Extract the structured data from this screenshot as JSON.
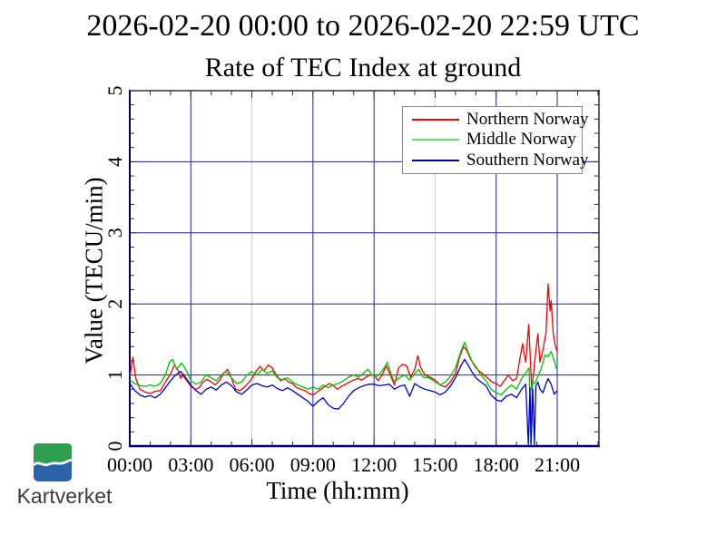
{
  "titles": {
    "line1": "2026-02-20 00:00 to 2026-02-20 22:59 UTC",
    "line2": "Rate of TEC Index at ground"
  },
  "logo": {
    "text": "Kartverket",
    "green": "#2f9e4f",
    "blue": "#2b63a8",
    "text_color": "#3c3c3c"
  },
  "chart_data": {
    "type": "line",
    "title": "Rate of TEC Index at ground",
    "subtitle": "2026-02-20 00:00 to 2026-02-20 22:59 UTC",
    "xlabel": "Time (hh:mm)",
    "ylabel": "Value (TECU/min)",
    "xlim": [
      0,
      23.05
    ],
    "ylim": [
      0,
      5
    ],
    "grid": true,
    "legend_position": "top-right",
    "xticks": [
      {
        "value": 0,
        "label": "00:00"
      },
      {
        "value": 3,
        "label": "03:00"
      },
      {
        "value": 6,
        "label": "06:00"
      },
      {
        "value": 9,
        "label": "09:00"
      },
      {
        "value": 12,
        "label": "12:00"
      },
      {
        "value": 15,
        "label": "15:00"
      },
      {
        "value": 18,
        "label": "18:00"
      },
      {
        "value": 21,
        "label": "21:00"
      }
    ],
    "yticks": [
      {
        "value": 0,
        "label": "0"
      },
      {
        "value": 1,
        "label": "1"
      },
      {
        "value": 2,
        "label": "2"
      },
      {
        "value": 3,
        "label": "3"
      },
      {
        "value": 4,
        "label": "4"
      },
      {
        "value": 5,
        "label": "5"
      }
    ],
    "x_minor_step": 1,
    "y_minor_step": 0.2,
    "light_gridlines_at": [
      6,
      15
    ],
    "colors": {
      "grid_major": "#2121a0",
      "grid_light": "#c9c9de",
      "axis_navy": "#00007f",
      "frame_dark": "#303030",
      "tick": "#303030",
      "background": "#ffffff"
    },
    "series": [
      {
        "name": "Northern Norway",
        "color": "#ff0000",
        "legend_color": "#ff0000",
        "points": [
          [
            0,
            0.97
          ],
          [
            0.15,
            1.25
          ],
          [
            0.3,
            0.95
          ],
          [
            0.5,
            0.8
          ],
          [
            0.75,
            0.76
          ],
          [
            1,
            0.74
          ],
          [
            1.25,
            0.77
          ],
          [
            1.5,
            0.78
          ],
          [
            1.75,
            0.9
          ],
          [
            2,
            1.02
          ],
          [
            2.2,
            1.14
          ],
          [
            2.4,
            1.05
          ],
          [
            2.5,
            0.95
          ],
          [
            2.6,
            1.0
          ],
          [
            2.8,
            0.92
          ],
          [
            3,
            0.84
          ],
          [
            3.2,
            0.8
          ],
          [
            3.4,
            0.82
          ],
          [
            3.6,
            0.9
          ],
          [
            3.8,
            0.94
          ],
          [
            4,
            0.9
          ],
          [
            4.2,
            0.86
          ],
          [
            4.4,
            0.92
          ],
          [
            4.6,
            1.02
          ],
          [
            4.8,
            1.08
          ],
          [
            5,
            0.95
          ],
          [
            5.2,
            0.8
          ],
          [
            5.4,
            0.78
          ],
          [
            5.6,
            0.82
          ],
          [
            5.8,
            0.88
          ],
          [
            6,
            0.95
          ],
          [
            6.2,
            1.05
          ],
          [
            6.4,
            1.12
          ],
          [
            6.6,
            1.06
          ],
          [
            6.8,
            1.14
          ],
          [
            7,
            1.1
          ],
          [
            7.2,
            1.0
          ],
          [
            7.4,
            0.92
          ],
          [
            7.6,
            0.95
          ],
          [
            7.8,
            0.9
          ],
          [
            8,
            0.88
          ],
          [
            8.2,
            0.82
          ],
          [
            8.4,
            0.8
          ],
          [
            8.6,
            0.78
          ],
          [
            8.8,
            0.74
          ],
          [
            9,
            0.72
          ],
          [
            9.2,
            0.76
          ],
          [
            9.4,
            0.8
          ],
          [
            9.6,
            0.84
          ],
          [
            9.8,
            0.88
          ],
          [
            10,
            0.85
          ],
          [
            10.2,
            0.8
          ],
          [
            10.4,
            0.84
          ],
          [
            10.6,
            0.87
          ],
          [
            10.8,
            0.9
          ],
          [
            11,
            0.93
          ],
          [
            11.2,
            0.95
          ],
          [
            11.4,
            0.93
          ],
          [
            11.6,
            0.97
          ],
          [
            11.8,
            1.0
          ],
          [
            12,
            1.0
          ],
          [
            12.2,
            0.92
          ],
          [
            12.4,
            1.0
          ],
          [
            12.6,
            1.13
          ],
          [
            12.8,
            1.0
          ],
          [
            13,
            0.86
          ],
          [
            13.2,
            1.1
          ],
          [
            13.4,
            1.15
          ],
          [
            13.6,
            1.13
          ],
          [
            13.8,
            0.97
          ],
          [
            14,
            1.08
          ],
          [
            14.15,
            1.27
          ],
          [
            14.3,
            1.1
          ],
          [
            14.5,
            1.0
          ],
          [
            14.75,
            0.97
          ],
          [
            15,
            0.93
          ],
          [
            15.25,
            0.86
          ],
          [
            15.5,
            0.83
          ],
          [
            15.75,
            0.9
          ],
          [
            16,
            1.02
          ],
          [
            16.2,
            1.25
          ],
          [
            16.4,
            1.4
          ],
          [
            16.55,
            1.35
          ],
          [
            16.75,
            1.22
          ],
          [
            17,
            1.1
          ],
          [
            17.2,
            1.05
          ],
          [
            17.4,
            1.0
          ],
          [
            17.6,
            0.95
          ],
          [
            17.8,
            0.9
          ],
          [
            18,
            0.88
          ],
          [
            18.2,
            0.84
          ],
          [
            18.4,
            0.92
          ],
          [
            18.6,
            1.0
          ],
          [
            18.8,
            0.92
          ],
          [
            19,
            0.95
          ],
          [
            19.15,
            1.2
          ],
          [
            19.3,
            1.44
          ],
          [
            19.45,
            1.18
          ],
          [
            19.6,
            1.71
          ],
          [
            19.75,
            0.78
          ],
          [
            19.9,
            1.2
          ],
          [
            20.05,
            1.58
          ],
          [
            20.15,
            1.18
          ],
          [
            20.3,
            1.35
          ],
          [
            20.45,
            1.6
          ],
          [
            20.55,
            2.28
          ],
          [
            20.65,
            1.9
          ],
          [
            20.7,
            2.05
          ],
          [
            20.8,
            1.6
          ],
          [
            20.9,
            1.42
          ],
          [
            21,
            1.32
          ]
        ]
      },
      {
        "name": "Middle Norway",
        "color": "#00c400",
        "legend_color": "#63e063",
        "points": [
          [
            0,
            0.93
          ],
          [
            0.25,
            0.88
          ],
          [
            0.5,
            0.85
          ],
          [
            0.75,
            0.84
          ],
          [
            1,
            0.86
          ],
          [
            1.25,
            0.84
          ],
          [
            1.5,
            0.88
          ],
          [
            1.75,
            1.0
          ],
          [
            1.95,
            1.18
          ],
          [
            2.1,
            1.22
          ],
          [
            2.3,
            1.08
          ],
          [
            2.55,
            1.17
          ],
          [
            2.8,
            1.05
          ],
          [
            3,
            0.92
          ],
          [
            3.25,
            0.87
          ],
          [
            3.5,
            0.9
          ],
          [
            3.75,
            1.0
          ],
          [
            4,
            0.96
          ],
          [
            4.25,
            0.92
          ],
          [
            4.5,
            1.0
          ],
          [
            4.7,
            1.05
          ],
          [
            5,
            0.96
          ],
          [
            5.25,
            0.88
          ],
          [
            5.5,
            0.9
          ],
          [
            5.75,
            1.0
          ],
          [
            6,
            1.05
          ],
          [
            6.25,
            1.0
          ],
          [
            6.5,
            1.08
          ],
          [
            6.75,
            1.02
          ],
          [
            7,
            1.06
          ],
          [
            7.25,
            0.96
          ],
          [
            7.5,
            0.93
          ],
          [
            7.75,
            0.96
          ],
          [
            8,
            0.9
          ],
          [
            8.25,
            0.86
          ],
          [
            8.5,
            0.83
          ],
          [
            8.75,
            0.8
          ],
          [
            9,
            0.83
          ],
          [
            9.25,
            0.8
          ],
          [
            9.5,
            0.86
          ],
          [
            9.75,
            0.82
          ],
          [
            10,
            0.86
          ],
          [
            10.25,
            0.88
          ],
          [
            10.5,
            0.92
          ],
          [
            10.75,
            0.97
          ],
          [
            11,
            1.0
          ],
          [
            11.25,
            0.97
          ],
          [
            11.5,
            1.03
          ],
          [
            11.7,
            1.08
          ],
          [
            11.9,
            1.0
          ],
          [
            12.1,
            0.97
          ],
          [
            12.3,
            1.02
          ],
          [
            12.5,
            1.1
          ],
          [
            12.65,
            1.18
          ],
          [
            12.85,
            1.0
          ],
          [
            13,
            0.9
          ],
          [
            13.25,
            0.96
          ],
          [
            13.5,
            1.0
          ],
          [
            13.75,
            0.93
          ],
          [
            14,
            1.02
          ],
          [
            14.2,
            1.08
          ],
          [
            14.4,
            0.97
          ],
          [
            14.7,
            0.96
          ],
          [
            15,
            0.9
          ],
          [
            15.25,
            0.86
          ],
          [
            15.5,
            0.9
          ],
          [
            15.75,
            0.98
          ],
          [
            16,
            1.1
          ],
          [
            16.25,
            1.32
          ],
          [
            16.45,
            1.46
          ],
          [
            16.6,
            1.34
          ],
          [
            16.8,
            1.2
          ],
          [
            17,
            1.12
          ],
          [
            17.25,
            1.0
          ],
          [
            17.5,
            0.92
          ],
          [
            17.75,
            0.8
          ],
          [
            18,
            0.75
          ],
          [
            18.25,
            0.72
          ],
          [
            18.5,
            0.8
          ],
          [
            18.75,
            0.86
          ],
          [
            19,
            0.8
          ],
          [
            19.25,
            0.95
          ],
          [
            19.5,
            1.05
          ],
          [
            19.62,
            1.1
          ],
          [
            19.7,
            0.02
          ],
          [
            19.78,
            0.9
          ],
          [
            19.9,
            0.88
          ],
          [
            20,
            0.95
          ],
          [
            20.2,
            1.08
          ],
          [
            20.4,
            1.28
          ],
          [
            20.55,
            1.26
          ],
          [
            20.7,
            1.33
          ],
          [
            20.85,
            1.2
          ],
          [
            21,
            1.06
          ]
        ]
      },
      {
        "name": "Southern Norway",
        "color": "#0000cc",
        "legend_color": "#0000a8",
        "points": [
          [
            0,
            0.88
          ],
          [
            0.25,
            0.78
          ],
          [
            0.5,
            0.72
          ],
          [
            0.75,
            0.69
          ],
          [
            1,
            0.71
          ],
          [
            1.25,
            0.68
          ],
          [
            1.5,
            0.73
          ],
          [
            1.75,
            0.82
          ],
          [
            2,
            0.92
          ],
          [
            2.25,
            1.0
          ],
          [
            2.5,
            1.05
          ],
          [
            2.75,
            0.96
          ],
          [
            3,
            0.86
          ],
          [
            3.25,
            0.78
          ],
          [
            3.5,
            0.73
          ],
          [
            3.75,
            0.8
          ],
          [
            4,
            0.83
          ],
          [
            4.25,
            0.79
          ],
          [
            4.5,
            0.86
          ],
          [
            4.75,
            0.9
          ],
          [
            5,
            0.85
          ],
          [
            5.25,
            0.76
          ],
          [
            5.5,
            0.73
          ],
          [
            5.75,
            0.79
          ],
          [
            6,
            0.86
          ],
          [
            6.25,
            0.88
          ],
          [
            6.5,
            0.85
          ],
          [
            6.75,
            0.83
          ],
          [
            7,
            0.86
          ],
          [
            7.25,
            0.81
          ],
          [
            7.5,
            0.78
          ],
          [
            7.75,
            0.82
          ],
          [
            8,
            0.78
          ],
          [
            8.25,
            0.73
          ],
          [
            8.5,
            0.68
          ],
          [
            8.75,
            0.63
          ],
          [
            9,
            0.56
          ],
          [
            9.25,
            0.63
          ],
          [
            9.5,
            0.68
          ],
          [
            9.75,
            0.58
          ],
          [
            10,
            0.53
          ],
          [
            10.25,
            0.52
          ],
          [
            10.5,
            0.6
          ],
          [
            10.75,
            0.7
          ],
          [
            11,
            0.78
          ],
          [
            11.25,
            0.82
          ],
          [
            11.5,
            0.85
          ],
          [
            11.75,
            0.87
          ],
          [
            12,
            0.87
          ],
          [
            12.25,
            0.85
          ],
          [
            12.5,
            0.86
          ],
          [
            12.75,
            0.87
          ],
          [
            13,
            0.8
          ],
          [
            13.25,
            0.84
          ],
          [
            13.5,
            0.86
          ],
          [
            13.75,
            0.7
          ],
          [
            14,
            0.88
          ],
          [
            14.25,
            0.83
          ],
          [
            14.5,
            0.8
          ],
          [
            14.75,
            0.78
          ],
          [
            15,
            0.76
          ],
          [
            15.25,
            0.72
          ],
          [
            15.5,
            0.76
          ],
          [
            15.75,
            0.84
          ],
          [
            16,
            0.96
          ],
          [
            16.25,
            1.12
          ],
          [
            16.45,
            1.22
          ],
          [
            16.6,
            1.15
          ],
          [
            16.8,
            1.05
          ],
          [
            17,
            0.96
          ],
          [
            17.25,
            0.9
          ],
          [
            17.5,
            0.85
          ],
          [
            17.75,
            0.72
          ],
          [
            18,
            0.65
          ],
          [
            18.25,
            0.63
          ],
          [
            18.5,
            0.7
          ],
          [
            18.75,
            0.73
          ],
          [
            19,
            0.68
          ],
          [
            19.25,
            0.8
          ],
          [
            19.45,
            0.87
          ],
          [
            19.58,
            0.02
          ],
          [
            19.66,
            0.82
          ],
          [
            19.72,
            0.03
          ],
          [
            19.8,
            0.8
          ],
          [
            19.88,
            0.02
          ],
          [
            19.95,
            0.85
          ],
          [
            20.05,
            0.9
          ],
          [
            20.15,
            0.8
          ],
          [
            20.3,
            0.75
          ],
          [
            20.45,
            0.88
          ],
          [
            20.55,
            0.95
          ],
          [
            20.7,
            0.87
          ],
          [
            20.85,
            0.73
          ],
          [
            21,
            0.78
          ]
        ]
      }
    ]
  }
}
